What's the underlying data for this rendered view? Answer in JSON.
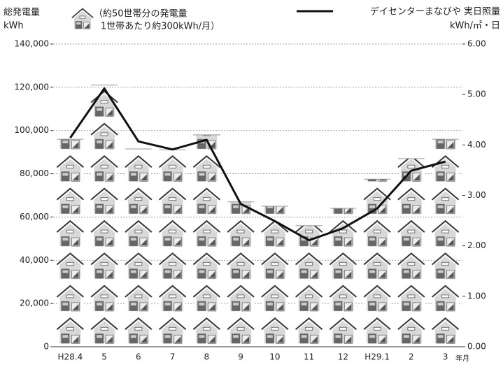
{
  "chart_data": {
    "type": "pictograph-bar-line",
    "y_label": "総発電量",
    "y_unit": "kWh",
    "icon_legend": [
      "（約50世帯分の発電量",
      "1世帯あたり約300kWh/月）"
    ],
    "icon_value": 15000,
    "y2_label": "デイセンターまなびや 実日照量",
    "y2_unit": "kWh/㎡・日",
    "x_unit": "年月",
    "categories": [
      "H28.4",
      "5",
      "6",
      "7",
      "8",
      "9",
      "10",
      "11",
      "12",
      "H29.1",
      "2",
      "3"
    ],
    "series": [
      {
        "values": [
          96000,
          121000,
          91500,
          91000,
          98000,
          67000,
          65000,
          56000,
          64000,
          77500,
          87000,
          96000
        ],
        "color": "#9a9a9a"
      },
      {
        "name": "デイセンターまなびや 実日照量",
        "axis": "y2",
        "color": "#111111",
        "values": [
          4.14,
          5.12,
          4.07,
          3.91,
          4.1,
          2.83,
          2.49,
          2.11,
          2.35,
          2.74,
          3.49,
          3.67
        ]
      }
    ],
    "ylim": [
      0,
      140000
    ],
    "yticks": [
      0,
      {
        "value": 20000,
        "label": "20,000"
      },
      {
        "value": 40000,
        "label": "40,000"
      },
      {
        "value": 60000,
        "label": "60,000"
      },
      {
        "value": 80000,
        "label": "80,000"
      },
      {
        "value": 100000,
        "label": "100,000"
      },
      {
        "value": 120000,
        "label": "120,000"
      },
      {
        "value": 140000,
        "label": "140,000"
      }
    ],
    "y2lim": [
      0,
      6
    ],
    "y2ticks": [
      {
        "value": 0,
        "label": "0.00"
      },
      {
        "value": 1,
        "label": "1.00"
      },
      {
        "value": 2,
        "label": "2.00"
      },
      {
        "value": 3,
        "label": "3.00"
      },
      {
        "value": 4,
        "label": "4.00"
      },
      {
        "value": 5,
        "label": "5.00"
      },
      {
        "value": 6,
        "label": "6.00"
      }
    ],
    "grid": true
  }
}
